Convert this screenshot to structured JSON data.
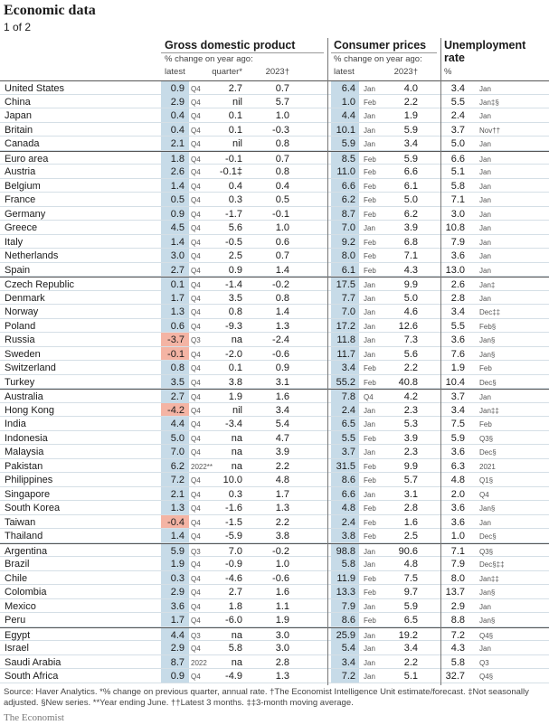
{
  "header": {
    "title": "Economic data",
    "page": "1 of 2"
  },
  "columns": {
    "gdp": "Gross domestic product",
    "gdp_sub": "% change on year ago:",
    "gdp_latest": "latest",
    "gdp_quarter": "quarter*",
    "gdp_2023": "2023†",
    "cpi": "Consumer prices",
    "cpi_sub": "% change on year ago:",
    "cpi_latest": "latest",
    "cpi_2023": "2023†",
    "unemp": "Unemployment rate",
    "unemp_unit": "%"
  },
  "groups": [
    [
      [
        "United States",
        "0.9",
        "Q4",
        "2.7",
        "0.7",
        "6.4",
        "Jan",
        "4.0",
        "3.4",
        "Jan"
      ],
      [
        "China",
        "2.9",
        "Q4",
        "nil",
        "5.7",
        "1.0",
        "Feb",
        "2.2",
        "5.5",
        "Jan‡§"
      ],
      [
        "Japan",
        "0.4",
        "Q4",
        "0.1",
        "1.0",
        "4.4",
        "Jan",
        "1.9",
        "2.4",
        "Jan"
      ],
      [
        "Britain",
        "0.4",
        "Q4",
        "0.1",
        "-0.3",
        "10.1",
        "Jan",
        "5.9",
        "3.7",
        "Nov††"
      ],
      [
        "Canada",
        "2.1",
        "Q4",
        "nil",
        "0.8",
        "5.9",
        "Jan",
        "3.4",
        "5.0",
        "Jan"
      ]
    ],
    [
      [
        "Euro area",
        "1.8",
        "Q4",
        "-0.1",
        "0.7",
        "8.5",
        "Feb",
        "5.9",
        "6.6",
        "Jan"
      ],
      [
        "Austria",
        "2.6",
        "Q4",
        "-0.1‡",
        "0.8",
        "11.0",
        "Feb",
        "6.6",
        "5.1",
        "Jan"
      ],
      [
        "Belgium",
        "1.4",
        "Q4",
        "0.4",
        "0.4",
        "6.6",
        "Feb",
        "6.1",
        "5.8",
        "Jan"
      ],
      [
        "France",
        "0.5",
        "Q4",
        "0.3",
        "0.5",
        "6.2",
        "Feb",
        "5.0",
        "7.1",
        "Jan"
      ],
      [
        "Germany",
        "0.9",
        "Q4",
        "-1.7",
        "-0.1",
        "8.7",
        "Feb",
        "6.2",
        "3.0",
        "Jan"
      ],
      [
        "Greece",
        "4.5",
        "Q4",
        "5.6",
        "1.0",
        "7.0",
        "Jan",
        "3.9",
        "10.8",
        "Jan"
      ],
      [
        "Italy",
        "1.4",
        "Q4",
        "-0.5",
        "0.6",
        "9.2",
        "Feb",
        "6.8",
        "7.9",
        "Jan"
      ],
      [
        "Netherlands",
        "3.0",
        "Q4",
        "2.5",
        "0.7",
        "8.0",
        "Feb",
        "7.1",
        "3.6",
        "Jan"
      ],
      [
        "Spain",
        "2.7",
        "Q4",
        "0.9",
        "1.4",
        "6.1",
        "Feb",
        "4.3",
        "13.0",
        "Jan"
      ]
    ],
    [
      [
        "Czech Republic",
        "0.1",
        "Q4",
        "-1.4",
        "-0.2",
        "17.5",
        "Jan",
        "9.9",
        "2.6",
        "Jan‡"
      ],
      [
        "Denmark",
        "1.7",
        "Q4",
        "3.5",
        "0.8",
        "7.7",
        "Jan",
        "5.0",
        "2.8",
        "Jan"
      ],
      [
        "Norway",
        "1.3",
        "Q4",
        "0.8",
        "1.4",
        "7.0",
        "Jan",
        "4.6",
        "3.4",
        "Dec‡‡"
      ],
      [
        "Poland",
        "0.6",
        "Q4",
        "-9.3",
        "1.3",
        "17.2",
        "Jan",
        "12.6",
        "5.5",
        "Feb§"
      ],
      [
        "Russia",
        "-3.7",
        "Q3",
        "na",
        "-2.4",
        "11.8",
        "Jan",
        "7.3",
        "3.6",
        "Jan§"
      ],
      [
        "Sweden",
        "-0.1",
        "Q4",
        "-2.0",
        "-0.6",
        "11.7",
        "Jan",
        "5.6",
        "7.6",
        "Jan§"
      ],
      [
        "Switzerland",
        "0.8",
        "Q4",
        "0.1",
        "0.9",
        "3.4",
        "Feb",
        "2.2",
        "1.9",
        "Feb"
      ],
      [
        "Turkey",
        "3.5",
        "Q4",
        "3.8",
        "3.1",
        "55.2",
        "Feb",
        "40.8",
        "10.4",
        "Dec§"
      ]
    ],
    [
      [
        "Australia",
        "2.7",
        "Q4",
        "1.9",
        "1.6",
        "7.8",
        "Q4",
        "4.2",
        "3.7",
        "Jan"
      ],
      [
        "Hong Kong",
        "-4.2",
        "Q4",
        "nil",
        "3.4",
        "2.4",
        "Jan",
        "2.3",
        "3.4",
        "Jan‡‡"
      ],
      [
        "India",
        "4.4",
        "Q4",
        "-3.4",
        "5.4",
        "6.5",
        "Jan",
        "5.3",
        "7.5",
        "Feb"
      ],
      [
        "Indonesia",
        "5.0",
        "Q4",
        "na",
        "4.7",
        "5.5",
        "Feb",
        "3.9",
        "5.9",
        "Q3§"
      ],
      [
        "Malaysia",
        "7.0",
        "Q4",
        "na",
        "3.9",
        "3.7",
        "Jan",
        "2.3",
        "3.6",
        "Dec§"
      ],
      [
        "Pakistan",
        "6.2",
        "2022**",
        "na",
        "2.2",
        "31.5",
        "Feb",
        "9.9",
        "6.3",
        "2021"
      ],
      [
        "Philippines",
        "7.2",
        "Q4",
        "10.0",
        "4.8",
        "8.6",
        "Feb",
        "5.7",
        "4.8",
        "Q1§"
      ],
      [
        "Singapore",
        "2.1",
        "Q4",
        "0.3",
        "1.7",
        "6.6",
        "Jan",
        "3.1",
        "2.0",
        "Q4"
      ],
      [
        "South Korea",
        "1.3",
        "Q4",
        "-1.6",
        "1.3",
        "4.8",
        "Feb",
        "2.8",
        "3.6",
        "Jan§"
      ],
      [
        "Taiwan",
        "-0.4",
        "Q4",
        "-1.5",
        "2.2",
        "2.4",
        "Feb",
        "1.6",
        "3.6",
        "Jan"
      ],
      [
        "Thailand",
        "1.4",
        "Q4",
        "-5.9",
        "3.8",
        "3.8",
        "Feb",
        "2.5",
        "1.0",
        "Dec§"
      ]
    ],
    [
      [
        "Argentina",
        "5.9",
        "Q3",
        "7.0",
        "-0.2",
        "98.8",
        "Jan",
        "90.6",
        "7.1",
        "Q3§"
      ],
      [
        "Brazil",
        "1.9",
        "Q4",
        "-0.9",
        "1.0",
        "5.8",
        "Jan",
        "4.8",
        "7.9",
        "Dec§‡‡"
      ],
      [
        "Chile",
        "0.3",
        "Q4",
        "-4.6",
        "-0.6",
        "11.9",
        "Feb",
        "7.5",
        "8.0",
        "Jan‡‡"
      ],
      [
        "Colombia",
        "2.9",
        "Q4",
        "2.7",
        "1.6",
        "13.3",
        "Feb",
        "9.7",
        "13.7",
        "Jan§"
      ],
      [
        "Mexico",
        "3.6",
        "Q4",
        "1.8",
        "1.1",
        "7.9",
        "Jan",
        "5.9",
        "2.9",
        "Jan"
      ],
      [
        "Peru",
        "1.7",
        "Q4",
        "-6.0",
        "1.9",
        "8.6",
        "Feb",
        "6.5",
        "8.8",
        "Jan§"
      ]
    ],
    [
      [
        "Egypt",
        "4.4",
        "Q3",
        "na",
        "3.0",
        "25.9",
        "Jan",
        "19.2",
        "7.2",
        "Q4§"
      ],
      [
        "Israel",
        "2.9",
        "Q4",
        "5.8",
        "3.0",
        "5.4",
        "Jan",
        "3.4",
        "4.3",
        "Jan"
      ],
      [
        "Saudi Arabia",
        "8.7",
        "2022",
        "na",
        "2.8",
        "3.4",
        "Jan",
        "2.2",
        "5.8",
        "Q3"
      ],
      [
        "South Africa",
        "0.9",
        "Q4",
        "-4.9",
        "1.3",
        "7.2",
        "Jan",
        "5.1",
        "32.7",
        "Q4§"
      ]
    ]
  ],
  "footnote": "Source: Haver Analytics. *% change on previous quarter, annual rate. †The Economist Intelligence Unit estimate/forecast. ‡Not seasonally adjusted. §New series. **Year ending June. ††Latest 3 months. ‡‡3-month moving average.",
  "brand": "The Economist"
}
